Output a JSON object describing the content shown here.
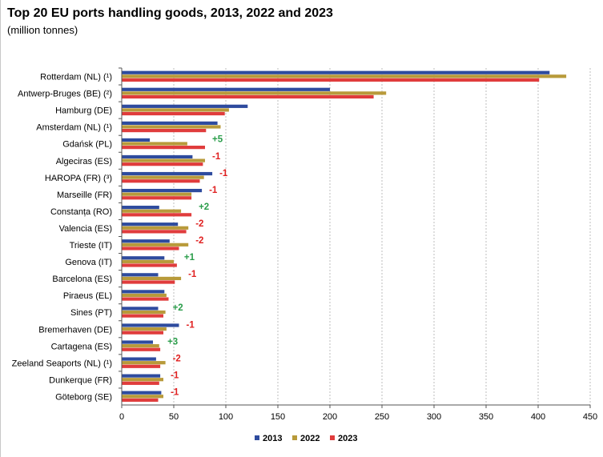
{
  "chart_data": {
    "type": "bar",
    "orientation": "horizontal",
    "title": "Top 20 EU ports handling goods, 2013, 2022 and 2023",
    "subtitle": "(million tonnes)",
    "categories": [
      "Rotterdam (NL) (¹)",
      "Antwerp-Bruges (BE) (²)",
      "Hamburg (DE)",
      "Amsterdam (NL) (¹)",
      "Gdańsk (PL)",
      "Algeciras (ES)",
      "HAROPA (FR) (³)",
      "Marseille (FR)",
      "Constanța (RO)",
      "Valencia (ES)",
      "Trieste (IT)",
      "Genova (IT)",
      "Barcelona (ES)",
      "Piraeus (EL)",
      "Sines (PT)",
      "Bremerhaven (DE)",
      "Cartagena (ES)",
      "Zeeland Seaports (NL) (¹)",
      "Dunkerque (FR)",
      "Göteborg (SE)"
    ],
    "series": [
      {
        "name": "2013",
        "color": "#2e4b9e",
        "values": [
          411,
          200,
          121,
          92,
          27,
          68,
          87,
          77,
          36,
          54,
          46,
          41,
          35,
          41,
          35,
          55,
          30,
          33,
          37,
          38
        ]
      },
      {
        "name": "2022",
        "color": "#b89a3a",
        "values": [
          427,
          254,
          103,
          95,
          63,
          80,
          79,
          67,
          57,
          64,
          64,
          50,
          57,
          43,
          42,
          43,
          36,
          42,
          40,
          40
        ]
      },
      {
        "name": "2023",
        "color": "#e03c3c",
        "values": [
          401,
          242,
          99,
          81,
          80,
          78,
          75,
          67,
          67,
          62,
          55,
          53,
          51,
          45,
          40,
          40,
          37,
          37,
          36,
          35
        ]
      }
    ],
    "rank_changes": [
      "",
      "",
      "",
      "",
      "+5",
      "-1",
      "-1",
      "-1",
      "+2",
      "-2",
      "-2",
      "+1",
      "-1",
      "",
      "+2",
      "-1",
      "+3",
      "-2",
      "-1",
      "-1"
    ],
    "change_colors": {
      "up": "#2a9d4a",
      "down": "#e02020"
    },
    "xlim": [
      0,
      450
    ],
    "xticks": [
      "0",
      "50",
      "100",
      "150",
      "200",
      "250",
      "300",
      "350",
      "400",
      "450"
    ],
    "grid": "vertical dashed",
    "legend": [
      "2013",
      "2022",
      "2023"
    ],
    "legend_position": "bottom-center"
  }
}
